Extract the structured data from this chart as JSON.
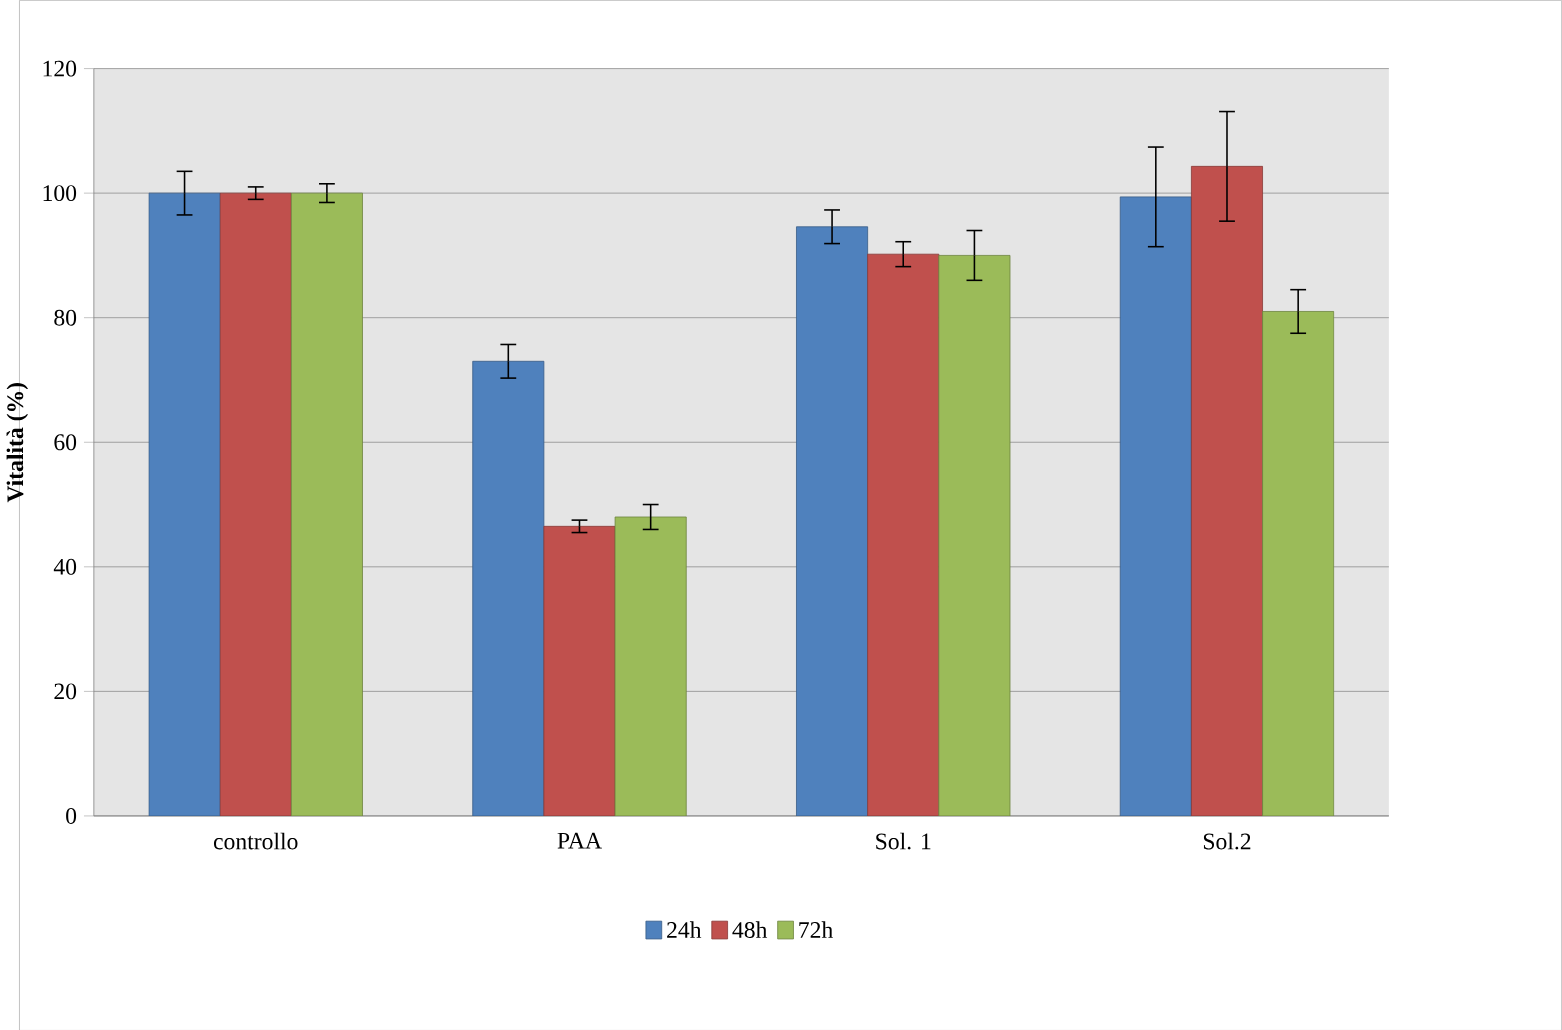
{
  "chart_data": {
    "type": "bar",
    "ylabel": "Vitalità (%)",
    "categories": [
      "controllo",
      "PAA",
      "Sol. 1",
      "Sol.2"
    ],
    "series": [
      {
        "name": "24h",
        "color": "#4f81bd",
        "values": [
          100,
          73,
          94.6,
          99.4
        ],
        "errors": [
          3.5,
          2.7,
          2.7,
          8
        ]
      },
      {
        "name": "48h",
        "color": "#c0504d",
        "values": [
          100,
          46.5,
          90.2,
          104.3
        ],
        "errors": [
          1,
          1,
          2,
          8.8
        ]
      },
      {
        "name": "72h",
        "color": "#9bbb59",
        "values": [
          100,
          48,
          90,
          81
        ],
        "errors": [
          1.5,
          2,
          4,
          3.5
        ]
      }
    ],
    "ylim": [
      0,
      120
    ],
    "yticks": [
      0,
      20,
      40,
      60,
      80,
      100,
      120
    ],
    "grid": "y",
    "legend": "bottom"
  }
}
